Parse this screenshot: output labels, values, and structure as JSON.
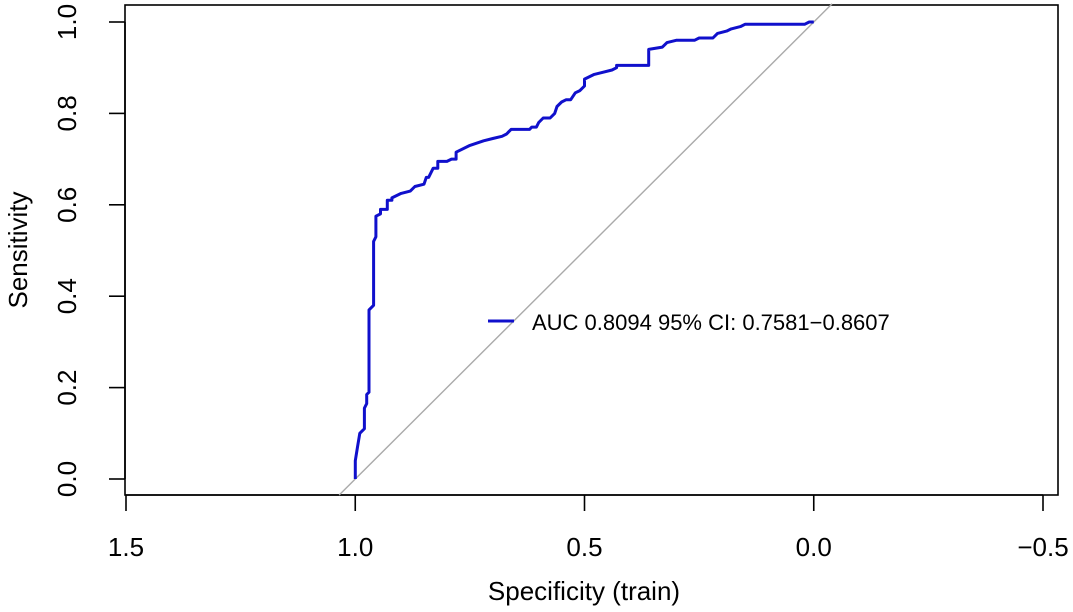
{
  "chart_data": {
    "type": "line",
    "title": "",
    "xlabel": "Specificity (train)",
    "ylabel": "Sensitivity",
    "xlim": [
      1.5,
      -0.5
    ],
    "ylim": [
      0.0,
      1.0
    ],
    "x_ticks": [
      "1.5",
      "1.0",
      "0.5",
      "0.0",
      "−0.5"
    ],
    "y_ticks": [
      "0.0",
      "0.2",
      "0.4",
      "0.6",
      "0.8",
      "1.0"
    ],
    "grid": false,
    "legend_position": "right-center",
    "colors": {
      "roc_line": "#1010cc",
      "reference_line": "#aaaaaa",
      "axis": "#000000"
    },
    "reference_line": {
      "x": [
        1.0,
        0.0
      ],
      "y": [
        0.0,
        1.0
      ]
    },
    "series": [
      {
        "name": "AUC 0.8094 95% CI: 0.7581−0.8607",
        "x": [
          1.0,
          1.0,
          0.995,
          0.99,
          0.98,
          0.98,
          0.975,
          0.975,
          0.97,
          0.97,
          0.96,
          0.96,
          0.955,
          0.955,
          0.945,
          0.945,
          0.93,
          0.93,
          0.92,
          0.92,
          0.9,
          0.88,
          0.87,
          0.85,
          0.845,
          0.84,
          0.835,
          0.83,
          0.82,
          0.82,
          0.8,
          0.79,
          0.78,
          0.78,
          0.75,
          0.72,
          0.7,
          0.68,
          0.67,
          0.665,
          0.66,
          0.64,
          0.62,
          0.615,
          0.605,
          0.6,
          0.59,
          0.575,
          0.565,
          0.56,
          0.55,
          0.54,
          0.53,
          0.52,
          0.51,
          0.5,
          0.5,
          0.48,
          0.46,
          0.44,
          0.43,
          0.43,
          0.36,
          0.36,
          0.33,
          0.32,
          0.3,
          0.26,
          0.25,
          0.22,
          0.21,
          0.19,
          0.18,
          0.16,
          0.15,
          0.12,
          0.05,
          0.02,
          0.01,
          0.0
        ],
        "y": [
          0.0,
          0.04,
          0.07,
          0.1,
          0.11,
          0.155,
          0.165,
          0.185,
          0.19,
          0.37,
          0.38,
          0.52,
          0.53,
          0.575,
          0.58,
          0.59,
          0.59,
          0.61,
          0.61,
          0.615,
          0.625,
          0.63,
          0.64,
          0.645,
          0.66,
          0.66,
          0.67,
          0.68,
          0.68,
          0.695,
          0.695,
          0.7,
          0.7,
          0.715,
          0.73,
          0.74,
          0.745,
          0.75,
          0.755,
          0.76,
          0.765,
          0.765,
          0.765,
          0.77,
          0.77,
          0.78,
          0.79,
          0.79,
          0.8,
          0.815,
          0.825,
          0.83,
          0.83,
          0.845,
          0.85,
          0.86,
          0.875,
          0.885,
          0.89,
          0.895,
          0.9,
          0.905,
          0.905,
          0.94,
          0.945,
          0.955,
          0.96,
          0.96,
          0.965,
          0.965,
          0.975,
          0.98,
          0.985,
          0.99,
          0.995,
          0.995,
          0.995,
          0.995,
          1.0,
          1.0
        ]
      }
    ]
  }
}
